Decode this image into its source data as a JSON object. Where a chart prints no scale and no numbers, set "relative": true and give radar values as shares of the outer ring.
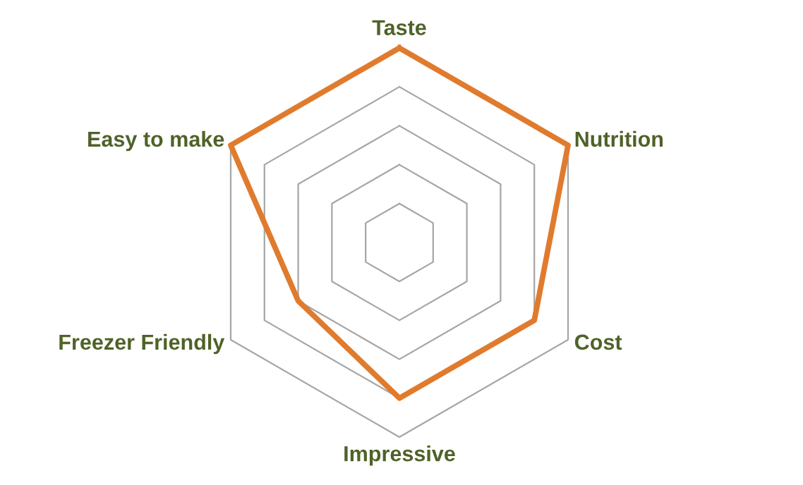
{
  "chart_data": {
    "type": "radar",
    "relative": true,
    "grid": true,
    "categories": [
      "Taste",
      "Nutrition",
      "Cost",
      "Impressive",
      "Freezer Friendly",
      "Easy to make"
    ],
    "series": [
      {
        "color": "#e07b2e",
        "values": [
          1,
          1,
          0.8,
          0.8,
          0.6,
          1
        ]
      }
    ]
  }
}
